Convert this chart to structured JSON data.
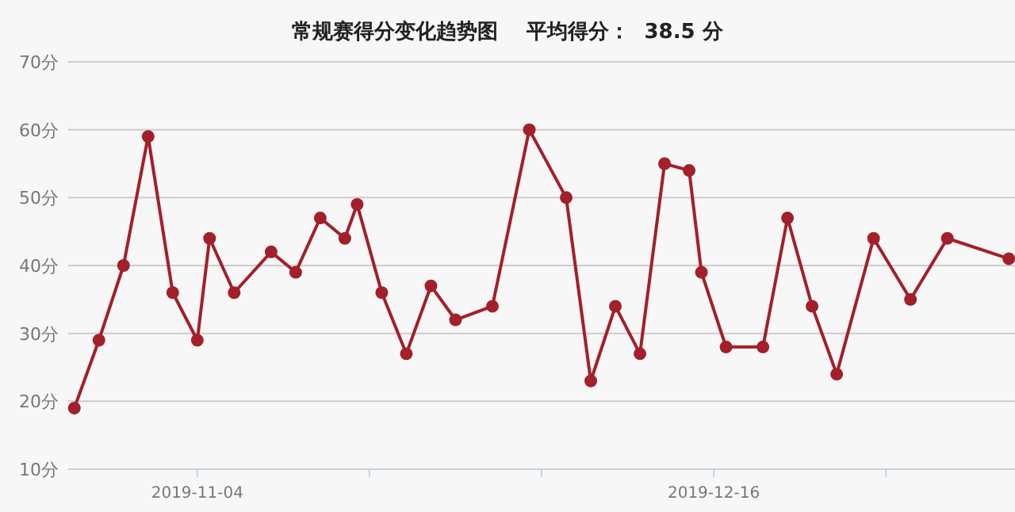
{
  "chart_data": {
    "type": "line",
    "title": "常规赛得分变化趋势图",
    "subtitle": "平均得分：  38.5 分",
    "x": [
      "2019-10-25",
      "2019-10-27",
      "2019-10-29",
      "2019-10-31",
      "2019-11-02",
      "2019-11-04",
      "2019-11-05",
      "2019-11-07",
      "2019-11-10",
      "2019-11-12",
      "2019-11-14",
      "2019-11-16",
      "2019-11-17",
      "2019-11-19",
      "2019-11-21",
      "2019-11-23",
      "2019-11-25",
      "2019-11-28",
      "2019-12-01",
      "2019-12-04",
      "2019-12-06",
      "2019-12-08",
      "2019-12-10",
      "2019-12-12",
      "2019-12-14",
      "2019-12-15",
      "2019-12-17",
      "2019-12-20",
      "2019-12-22",
      "2019-12-24",
      "2019-12-26",
      "2019-12-29",
      "2020-01-01",
      "2020-01-04",
      "2020-01-09"
    ],
    "series": [
      {
        "color": "#a31f2a",
        "values": [
          19,
          29,
          40,
          59,
          36,
          29,
          44,
          36,
          42,
          39,
          47,
          44,
          49,
          36,
          27,
          37,
          32,
          34,
          60,
          50,
          23,
          34,
          27,
          55,
          54,
          39,
          28,
          28,
          47,
          34,
          24,
          44,
          35,
          44,
          41
        ]
      }
    ],
    "xlim": [
      "2019-10-24T12:00",
      "2020-01-09T12:00"
    ],
    "xticks": [
      {
        "value": "2019-11-04",
        "label": "2019-11-04"
      },
      {
        "value": "2019-11-18",
        "label": null
      },
      {
        "value": "2019-12-02",
        "label": null
      },
      {
        "value": "2019-12-16",
        "label": "2019-12-16"
      },
      {
        "value": "2019-12-30",
        "label": null
      }
    ],
    "ylim": [
      10,
      70
    ],
    "yticks": [
      {
        "value": 10,
        "label": "10分"
      },
      {
        "value": 20,
        "label": "20分"
      },
      {
        "value": 30,
        "label": "30分"
      },
      {
        "value": 40,
        "label": "40分"
      },
      {
        "value": 50,
        "label": "50分"
      },
      {
        "value": 60,
        "label": "60分"
      },
      {
        "value": 70,
        "label": "70分"
      }
    ],
    "grid": "y",
    "marker": "circle",
    "line_style": "solid"
  }
}
